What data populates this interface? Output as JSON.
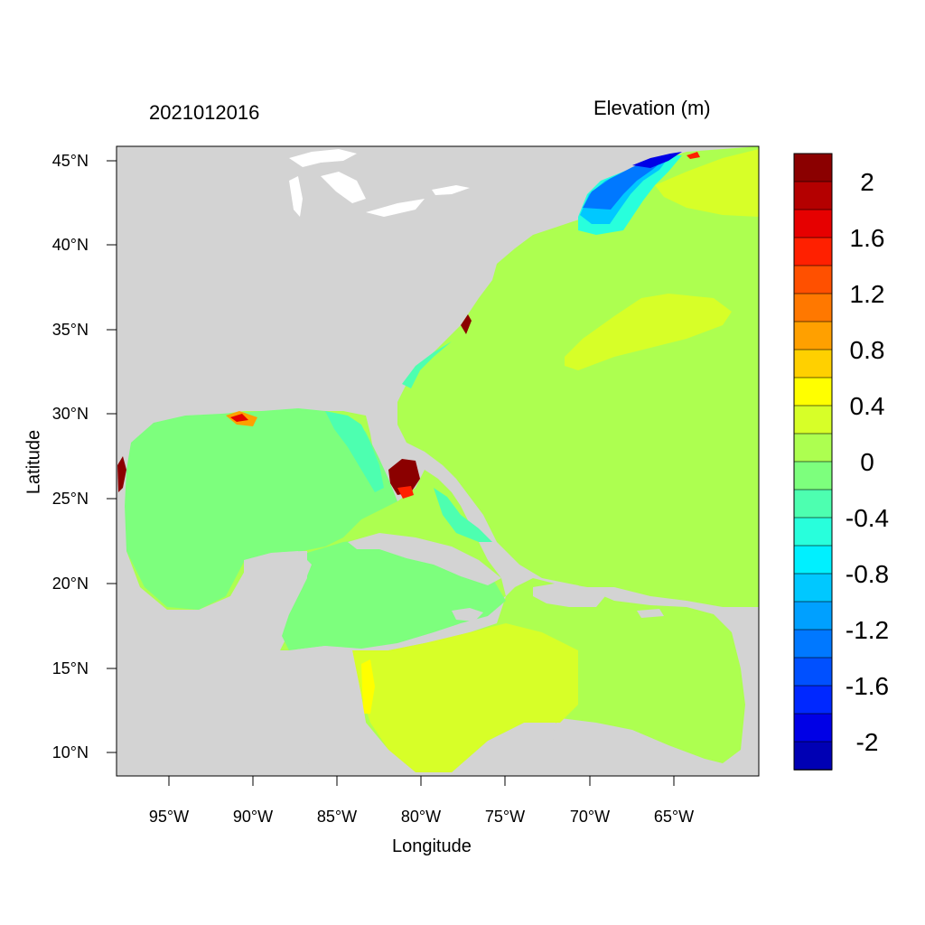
{
  "map": {
    "timestamp": "2021012016",
    "variable_title": "Elevation (m)",
    "xlabel": "Longitude",
    "ylabel": "Latitude",
    "x_ticks": [
      "95°W",
      "90°W",
      "85°W",
      "80°W",
      "75°W",
      "70°W",
      "65°W"
    ],
    "y_ticks": [
      "45°N",
      "40°N",
      "35°N",
      "30°N",
      "25°N",
      "20°N",
      "15°N",
      "10°N"
    ],
    "land_color": "#d3d3d3",
    "colors": {
      "ocean_gulf": "#7dff7d",
      "ocean_atlantic": "#adff50",
      "positive_04": "#d7ff28",
      "positive_08": "#ffff00",
      "positive_high": "#8b0000",
      "negative_04": "#4dffb0",
      "negative_08": "#28ffdc",
      "negative_12": "#00c8ff",
      "negative_16": "#0078ff",
      "negative_2": "#0000ff"
    }
  },
  "colorbar": {
    "labels": [
      "2",
      "1.6",
      "1.2",
      "0.8",
      "0.4",
      "0",
      "-0.4",
      "-0.8",
      "-1.2",
      "-1.6",
      "-2"
    ],
    "colors": [
      "#8b0000",
      "#b40000",
      "#e60000",
      "#ff2000",
      "#ff5000",
      "#ff7800",
      "#ffa000",
      "#ffd000",
      "#ffff00",
      "#d7ff28",
      "#adff50",
      "#7dff7d",
      "#4dffb0",
      "#28ffdc",
      "#00f0ff",
      "#00c8ff",
      "#00a0ff",
      "#0078ff",
      "#0050ff",
      "#0028ff",
      "#0000e6",
      "#0000b4"
    ]
  }
}
